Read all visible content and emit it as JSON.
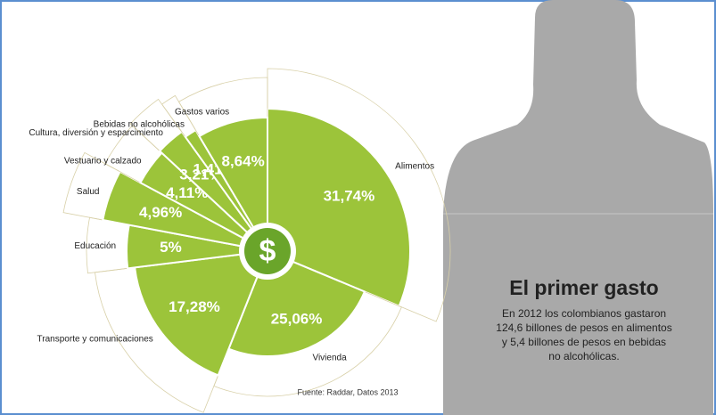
{
  "chart_data": {
    "type": "polar",
    "categories": [
      "Alimentos",
      "Vivienda",
      "Transporte y comunicaciones",
      "Educación",
      "Salud",
      "Vestuario y calzado",
      "Cultura, diversión y esparcimiento",
      "Bebidas no alcohólicas",
      "Gastos varios"
    ],
    "values": [
      31.74,
      25.06,
      17.28,
      5,
      4.96,
      4.11,
      3.21,
      1.41,
      8.64
    ],
    "value_labels": [
      "31,74%",
      "25,06%",
      "17,28%",
      "5%",
      "4,96%",
      "4,11%",
      "3,21%",
      "1,41%",
      "8,64%"
    ],
    "color": "#9cc43a",
    "center_symbol": "$",
    "title": "El primer gasto",
    "text_lines": [
      "En 2012 los colombianos gastaron",
      "124,6 billones de pesos en alimentos",
      "y 5,4 billones de pesos en bebidas",
      "no alcohólicas."
    ],
    "source": "Fuente: Raddar, Datos 2013"
  }
}
